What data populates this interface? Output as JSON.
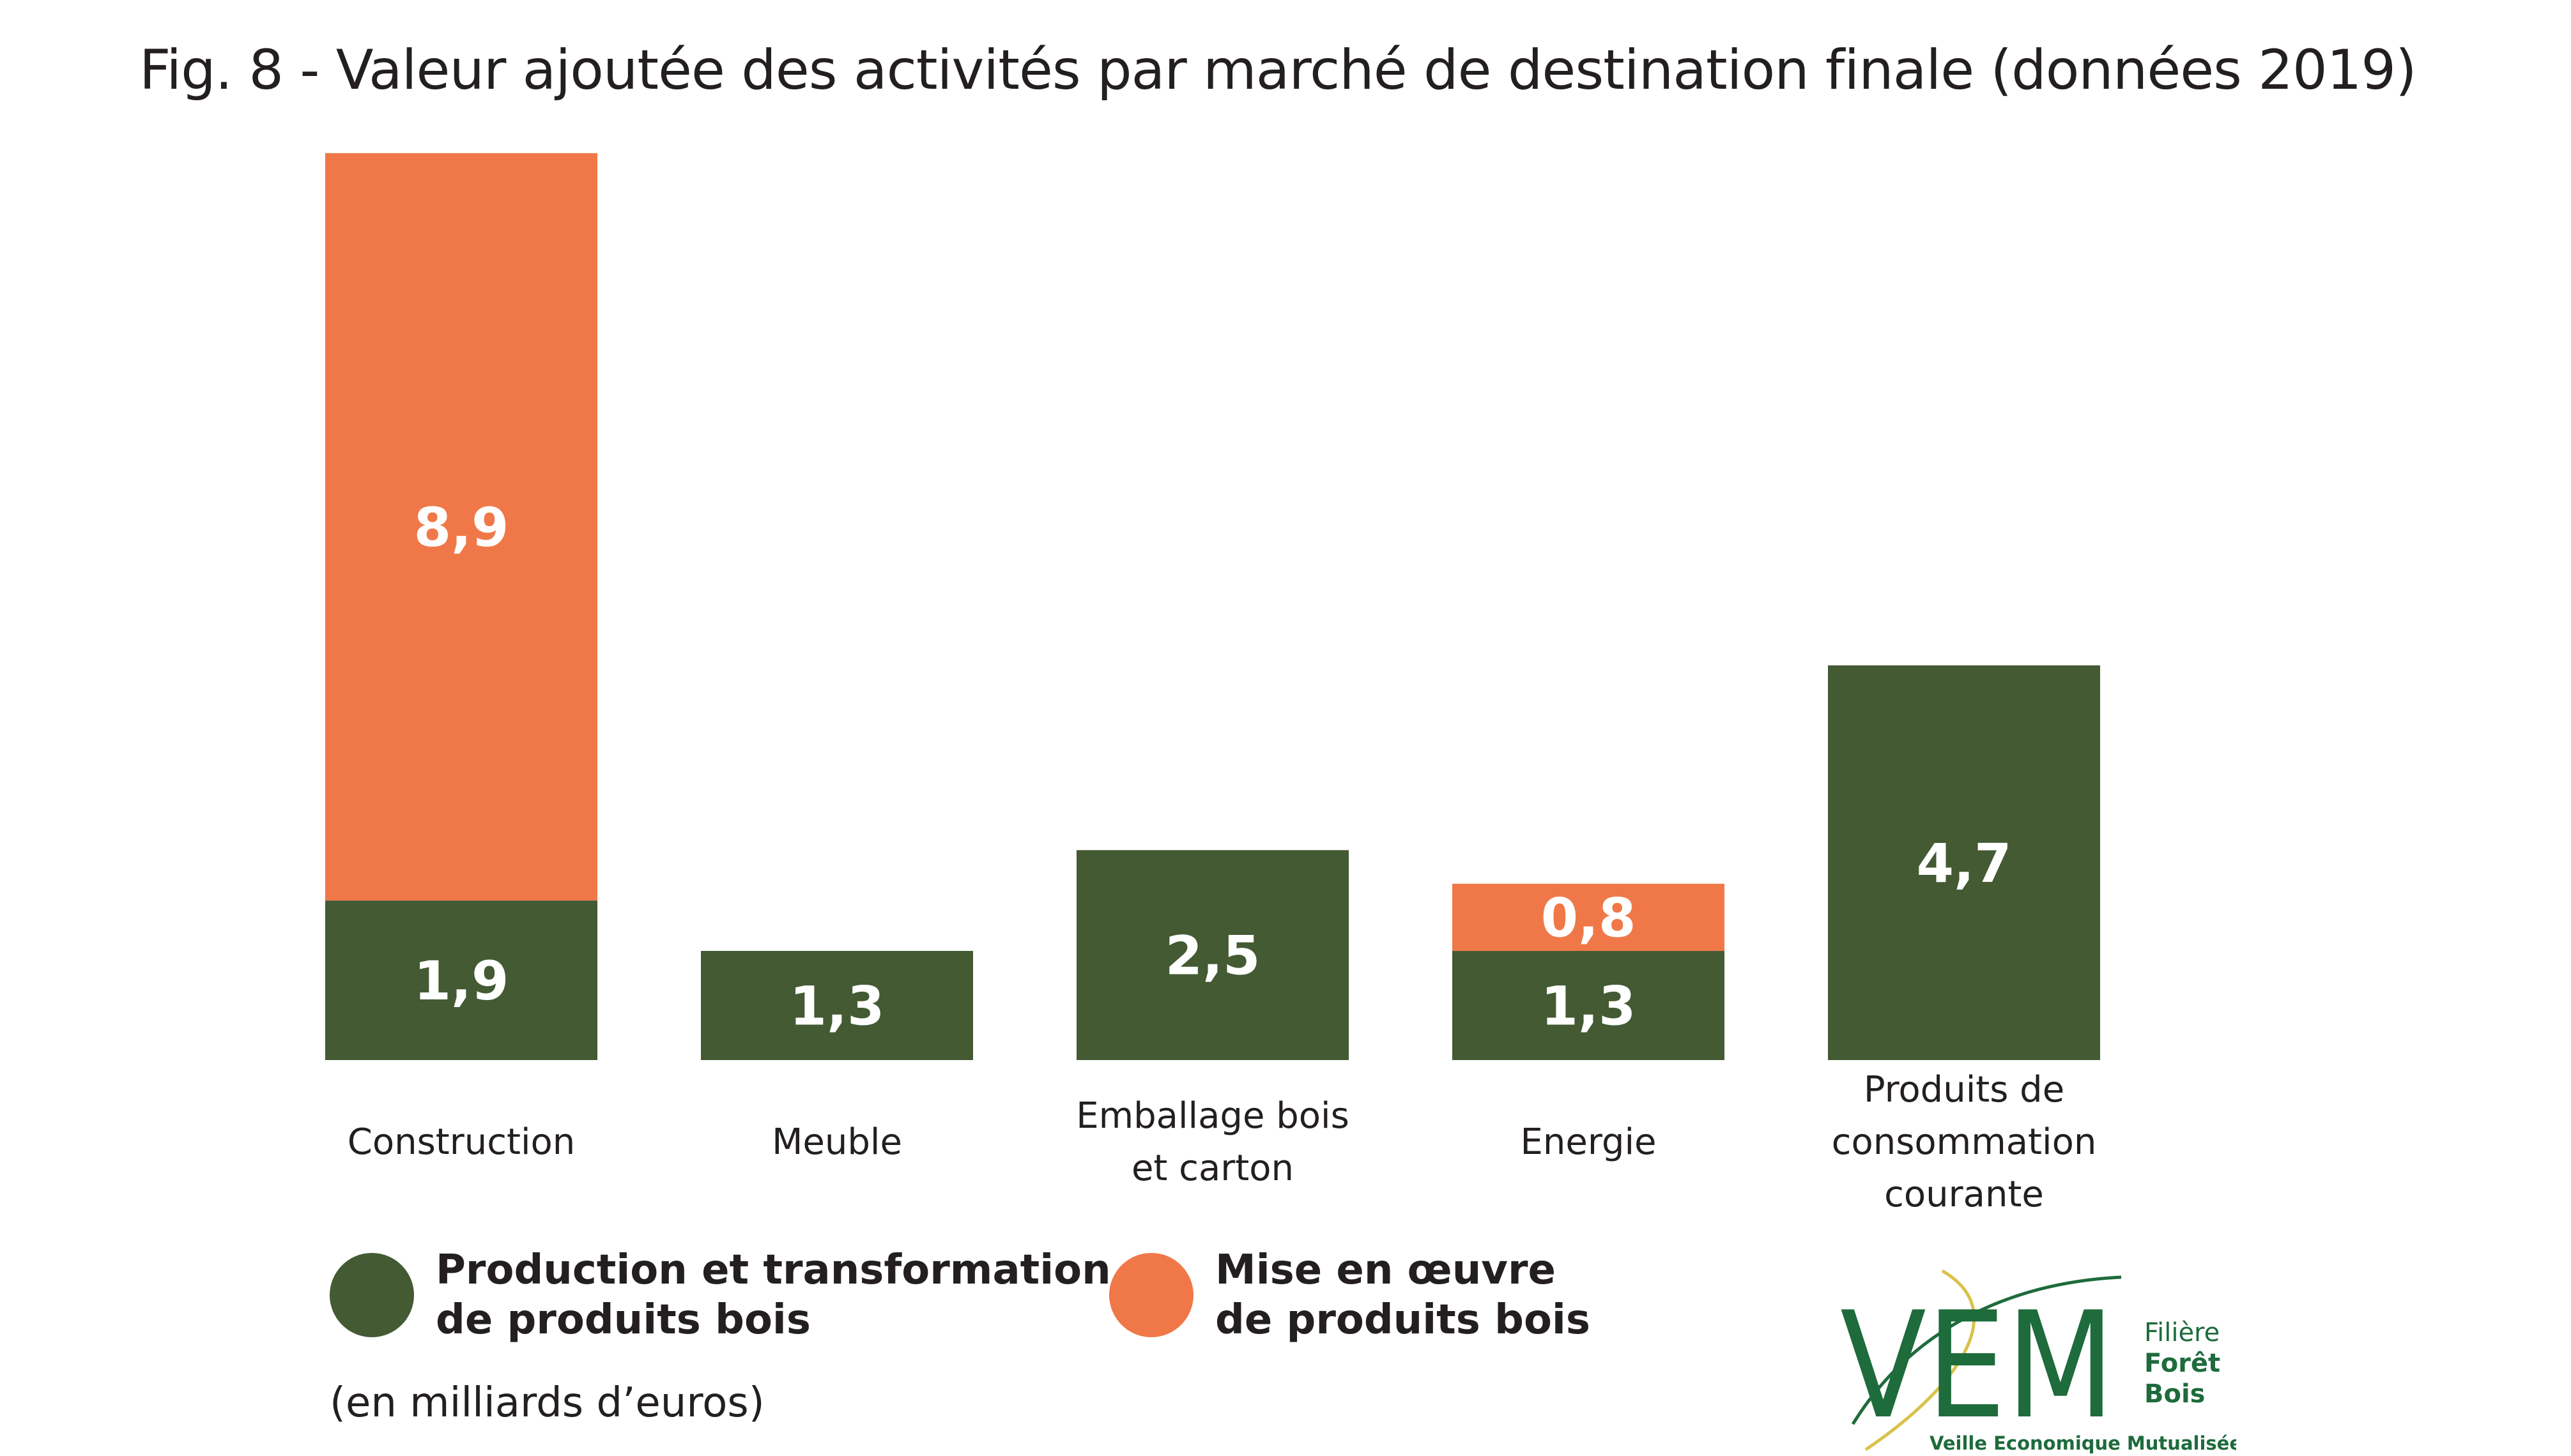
{
  "title": "Fig. 8 - Valeur ajoutée des activités par marché de destination finale (données 2019)",
  "unit_note": "(en milliards d’euros)",
  "colors": {
    "production": "#435a33",
    "mise_en_oeuvre": "#f07848",
    "logo_green": "#1e6b3c",
    "logo_yellow": "#d9c24a"
  },
  "chart_data": {
    "type": "bar",
    "stacked": true,
    "categories": [
      "Construction",
      "Meuble",
      "Emballage bois\net carton",
      "Energie",
      "Produits de\nconsommation\ncourante"
    ],
    "series": [
      {
        "name": "Production et transformation de produits bois",
        "color": "#435a33",
        "values": [
          1.9,
          1.3,
          2.5,
          1.3,
          4.7
        ],
        "labels": [
          "1,9",
          "1,3",
          "2,5",
          "1,3",
          "4,7"
        ]
      },
      {
        "name": "Mise en œuvre de produits bois",
        "color": "#f07848",
        "values": [
          8.9,
          0,
          0,
          0.8,
          0
        ],
        "labels": [
          "8,9",
          "",
          "",
          "0,8",
          ""
        ]
      }
    ],
    "ylim": [
      0,
      10.8
    ],
    "grid": false,
    "legend_position": "bottom-left"
  },
  "legend": [
    {
      "label": "Production et transformation\nde produits bois",
      "color": "#435a33"
    },
    {
      "label": "Mise en œuvre\nde produits bois",
      "color": "#f07848"
    }
  ],
  "logo": {
    "letters": "VEM",
    "side_lines": [
      "Filière",
      "Forêt",
      "Bois"
    ],
    "tagline": "Veille Economique Mutualisée"
  }
}
